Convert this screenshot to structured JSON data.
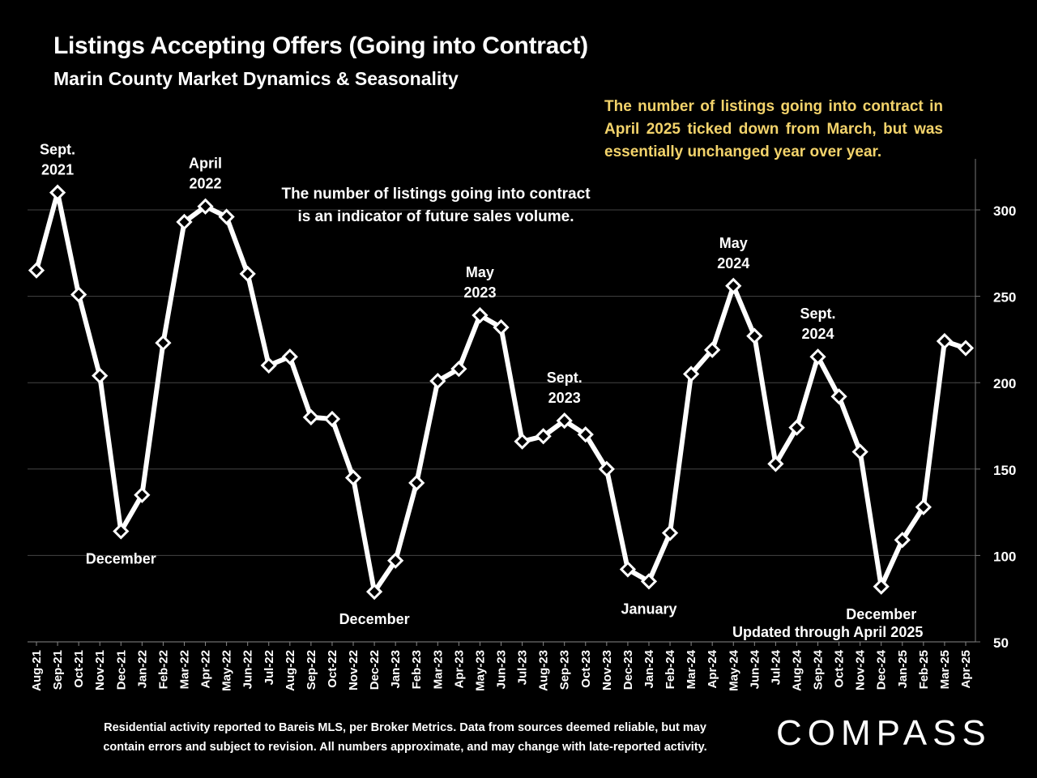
{
  "title": "Listings Accepting Offers (Going into Contract)",
  "subtitle": "Marin County Market Dynamics & Seasonality",
  "notes": {
    "yellow": "The number of listings going into contract in April 2025 ticked down from March, but was essentially unchanged year over year.",
    "white_line1": "The number of listings going into contract",
    "white_line2": "is an indicator of future sales volume.",
    "updated": "Updated through April 2025"
  },
  "footnote": {
    "line1": "Residential activity reported to Bareis MLS, per Broker Metrics. Data from sources deemed reliable, but may",
    "line2": "contain errors and subject to revision. All numbers approximate, and may change with late-reported activity."
  },
  "logo": "COMPASS",
  "colors": {
    "background": "#000000",
    "line": "#ffffff",
    "grid": "#444444",
    "note": "#f3d36b"
  },
  "chart_data": {
    "type": "line",
    "title": "Listings Accepting Offers (Going into Contract)",
    "ylim": [
      50,
      330
    ],
    "yticks": [
      50,
      100,
      150,
      200,
      250,
      300
    ],
    "yaxis_side": "right",
    "grid": true,
    "categories": [
      "Aug-21",
      "Sep-21",
      "Oct-21",
      "Nov-21",
      "Dec-21",
      "Jan-22",
      "Feb-22",
      "Mar-22",
      "Apr-22",
      "May-22",
      "Jun-22",
      "Jul-22",
      "Aug-22",
      "Sep-22",
      "Oct-22",
      "Nov-22",
      "Dec-22",
      "Jan-23",
      "Feb-23",
      "Mar-23",
      "Apr-23",
      "May-23",
      "Jun-23",
      "Jul-23",
      "Aug-23",
      "Sep-23",
      "Oct-23",
      "Nov-23",
      "Dec-23",
      "Jan-24",
      "Feb-24",
      "Mar-24",
      "Apr-24",
      "May-24",
      "Jun-24",
      "Jul-24",
      "Aug-24",
      "Sep-24",
      "Oct-24",
      "Nov-24",
      "Dec-24",
      "Jan-25",
      "Feb-25",
      "Mar-25",
      "Apr-25"
    ],
    "series": [
      {
        "name": "Listings Accepting Offers",
        "values": [
          265,
          310,
          251,
          204,
          114,
          135,
          223,
          293,
          302,
          296,
          263,
          210,
          215,
          180,
          179,
          145,
          79,
          97,
          142,
          201,
          208,
          239,
          232,
          166,
          169,
          178,
          170,
          150,
          92,
          85,
          113,
          205,
          219,
          256,
          227,
          153,
          174,
          215,
          192,
          160,
          82,
          109,
          128,
          224,
          220
        ]
      }
    ],
    "annotations": [
      {
        "index": 1,
        "lines": [
          "Sept.",
          "2021"
        ],
        "position": "above"
      },
      {
        "index": 4,
        "lines": [
          "December"
        ],
        "position": "below"
      },
      {
        "index": 8,
        "lines": [
          "April",
          "2022"
        ],
        "position": "above"
      },
      {
        "index": 16,
        "lines": [
          "December"
        ],
        "position": "below"
      },
      {
        "index": 21,
        "lines": [
          "May",
          "2023"
        ],
        "position": "above"
      },
      {
        "index": 25,
        "lines": [
          "Sept.",
          "2023"
        ],
        "position": "above"
      },
      {
        "index": 29,
        "lines": [
          "January"
        ],
        "position": "below"
      },
      {
        "index": 33,
        "lines": [
          "May",
          "2024"
        ],
        "position": "above"
      },
      {
        "index": 37,
        "lines": [
          "Sept.",
          "2024"
        ],
        "position": "above"
      },
      {
        "index": 40,
        "lines": [
          "December"
        ],
        "position": "below"
      }
    ]
  }
}
